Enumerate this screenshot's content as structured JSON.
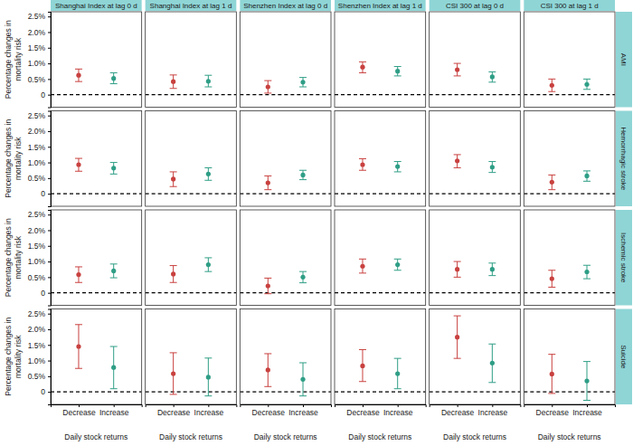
{
  "chart_data": {
    "type": "scatter",
    "marker": "circle",
    "grid": false,
    "columns": [
      "Shanghai Index at lag 0 d",
      "Shanghai Index at lag 1 d",
      "Shenzhen Index at lag 0 d",
      "Shenzhen Index at lag 1 d",
      "CSI 300 at lag 0 d",
      "CSI 300 at lag 1 d"
    ],
    "rows": [
      "AMI",
      "Hemorrhagic stroke",
      "Ischemic stroke",
      "Suicide"
    ],
    "y_label": [
      "Percentage changes in",
      "mortality risk"
    ],
    "x_label": "Daily stock returns",
    "categories": [
      "Decrease",
      "Increase"
    ],
    "colors": [
      "#c8413f",
      "#2f9e86"
    ],
    "ylim": [
      -0.4,
      2.65
    ],
    "yticks": [
      0,
      {
        "value": 0.5,
        "label": "0.5%"
      },
      {
        "value": 1.0,
        "label": "1.0%"
      },
      {
        "value": 1.5,
        "label": "1.5%"
      },
      {
        "value": 2.0,
        "label": "2.0%"
      },
      {
        "value": 2.5,
        "label": "2.5%"
      }
    ],
    "hline": 0,
    "values": [
      [
        [
          0.62,
          0.52
        ],
        [
          0.42,
          0.43
        ],
        [
          0.25,
          0.4
        ],
        [
          0.88,
          0.75
        ],
        [
          0.8,
          0.57
        ],
        [
          0.3,
          0.33
        ]
      ],
      [
        [
          0.93,
          0.82
        ],
        [
          0.47,
          0.63
        ],
        [
          0.35,
          0.6
        ],
        [
          0.93,
          0.87
        ],
        [
          1.05,
          0.85
        ],
        [
          0.37,
          0.57
        ]
      ],
      [
        [
          0.58,
          0.7
        ],
        [
          0.6,
          0.9
        ],
        [
          0.22,
          0.5
        ],
        [
          0.85,
          0.9
        ],
        [
          0.75,
          0.75
        ],
        [
          0.45,
          0.67
        ]
      ],
      [
        [
          1.45,
          0.78
        ],
        [
          0.58,
          0.47
        ],
        [
          0.7,
          0.4
        ],
        [
          0.83,
          0.58
        ],
        [
          1.75,
          0.92
        ],
        [
          0.57,
          0.35
        ]
      ]
    ],
    "lower": [
      [
        [
          0.42,
          0.35
        ],
        [
          0.2,
          0.25
        ],
        [
          0.05,
          0.25
        ],
        [
          0.7,
          0.6
        ],
        [
          0.6,
          0.4
        ],
        [
          0.1,
          0.17
        ]
      ],
      [
        [
          0.72,
          0.63
        ],
        [
          0.23,
          0.43
        ],
        [
          0.13,
          0.45
        ],
        [
          0.75,
          0.7
        ],
        [
          0.83,
          0.68
        ],
        [
          0.13,
          0.4
        ]
      ],
      [
        [
          0.33,
          0.48
        ],
        [
          0.33,
          0.68
        ],
        [
          -0.03,
          0.32
        ],
        [
          0.63,
          0.72
        ],
        [
          0.5,
          0.55
        ],
        [
          0.18,
          0.45
        ]
      ],
      [
        [
          0.75,
          0.1
        ],
        [
          -0.08,
          -0.13
        ],
        [
          0.17,
          -0.13
        ],
        [
          0.33,
          0.1
        ],
        [
          1.07,
          0.3
        ],
        [
          -0.05,
          -0.27
        ]
      ]
    ],
    "upper": [
      [
        [
          0.82,
          0.7
        ],
        [
          0.63,
          0.62
        ],
        [
          0.45,
          0.55
        ],
        [
          1.05,
          0.9
        ],
        [
          1.0,
          0.73
        ],
        [
          0.5,
          0.5
        ]
      ],
      [
        [
          1.13,
          1.0
        ],
        [
          0.7,
          0.83
        ],
        [
          0.57,
          0.75
        ],
        [
          1.12,
          1.03
        ],
        [
          1.25,
          1.03
        ],
        [
          0.6,
          0.73
        ]
      ],
      [
        [
          0.83,
          0.92
        ],
        [
          0.87,
          1.12
        ],
        [
          0.47,
          0.68
        ],
        [
          1.08,
          1.08
        ],
        [
          1.0,
          0.95
        ],
        [
          0.72,
          0.88
        ]
      ],
      [
        [
          2.15,
          1.45
        ],
        [
          1.25,
          1.08
        ],
        [
          1.22,
          0.93
        ],
        [
          1.35,
          1.07
        ],
        [
          2.43,
          1.53
        ],
        [
          1.2,
          0.97
        ]
      ]
    ]
  }
}
